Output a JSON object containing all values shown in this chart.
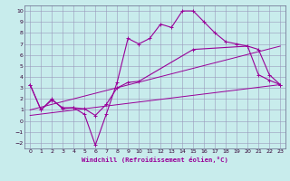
{
  "xlabel": "Windchill (Refroidissement éolien,°C)",
  "bg_color": "#c8ecec",
  "grid_color": "#9999bb",
  "line_color": "#990099",
  "spine_color": "#666688",
  "tick_color": "#330033",
  "xlim": [
    -0.5,
    23.5
  ],
  "ylim": [
    -2.5,
    10.5
  ],
  "xticks": [
    0,
    1,
    2,
    3,
    4,
    5,
    6,
    7,
    8,
    9,
    10,
    11,
    12,
    13,
    14,
    15,
    16,
    17,
    18,
    19,
    20,
    21,
    22,
    23
  ],
  "yticks": [
    -2,
    -1,
    0,
    1,
    2,
    3,
    4,
    5,
    6,
    7,
    8,
    9,
    10
  ],
  "curve1_x": [
    0,
    1,
    2,
    3,
    4,
    5,
    6,
    7,
    8,
    9,
    10,
    11,
    12,
    13,
    14,
    15,
    16,
    17,
    18,
    19,
    20,
    21,
    22,
    23
  ],
  "curve1_y": [
    3.3,
    1.0,
    2.0,
    1.1,
    1.2,
    0.6,
    -2.2,
    0.6,
    3.5,
    7.5,
    7.0,
    7.5,
    8.8,
    8.5,
    10.0,
    10.0,
    9.0,
    8.0,
    7.2,
    7.0,
    6.8,
    4.2,
    3.7,
    3.3
  ],
  "curve2_x": [
    0,
    1,
    2,
    3,
    4,
    5,
    6,
    7,
    8,
    9,
    10,
    15,
    20,
    21,
    22,
    23
  ],
  "curve2_y": [
    3.3,
    1.0,
    1.9,
    1.2,
    1.2,
    1.1,
    0.5,
    1.5,
    3.0,
    3.5,
    3.6,
    6.5,
    6.8,
    6.5,
    4.2,
    3.3
  ],
  "line3_x": [
    0,
    23
  ],
  "line3_y": [
    1.0,
    6.8
  ],
  "line4_x": [
    0,
    23
  ],
  "line4_y": [
    0.5,
    3.3
  ]
}
